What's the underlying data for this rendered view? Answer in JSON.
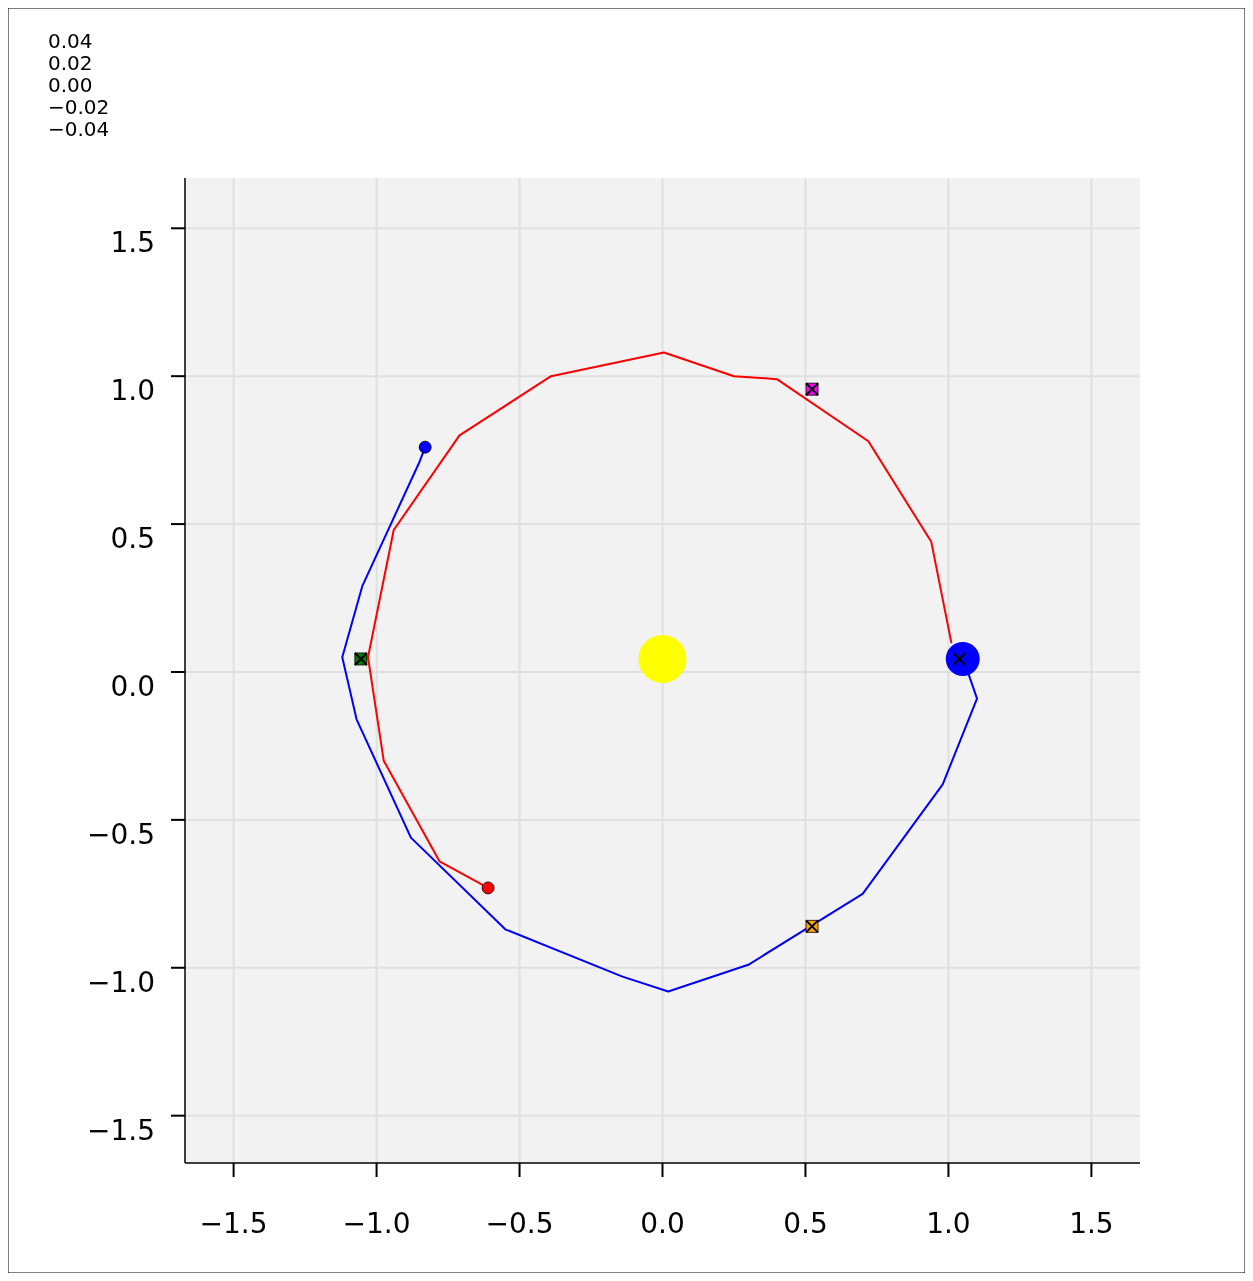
{
  "chart_data": {
    "type": "line",
    "xlim": [
      -1.67,
      1.67
    ],
    "ylim": [
      -1.66,
      1.67
    ],
    "xticks": [
      {
        "value": -1.5,
        "label": "−1.5"
      },
      {
        "value": -1.0,
        "label": "−1.0"
      },
      {
        "value": -0.5,
        "label": "−0.5"
      },
      {
        "value": 0,
        "label": "0.0"
      },
      {
        "value": 0.5,
        "label": "0.5"
      },
      {
        "value": 1.0,
        "label": "1.0"
      },
      {
        "value": 1.5,
        "label": "1.5"
      }
    ],
    "yticks": [
      {
        "value": -1.5,
        "label": "−1.5"
      },
      {
        "value": -1.0,
        "label": "−1.0"
      },
      {
        "value": -0.5,
        "label": "−0.5"
      },
      {
        "value": 0,
        "label": "0.0"
      },
      {
        "value": 0.5,
        "label": "0.5"
      },
      {
        "value": 1.0,
        "label": "1.0"
      },
      {
        "value": 1.5,
        "label": "1.5"
      }
    ],
    "grid": true,
    "annotations": [
      "0.04",
      "0.02",
      "0.00",
      "−0.02",
      "−0.04"
    ],
    "series": [
      {
        "color": "#ff0000",
        "x": [
          -0.61,
          -0.78,
          -0.975,
          -1.03,
          -0.94,
          -0.71,
          -0.39,
          0.005,
          0.25,
          0.4,
          0.72,
          0.94,
          1.01
        ],
        "values": [
          -0.73,
          -0.64,
          -0.3,
          0.05,
          0.48,
          0.8,
          1.0,
          1.08,
          1.0,
          0.99,
          0.78,
          0.44,
          0.1
        ]
      },
      {
        "type": "line",
        "color": "#0000ff",
        "x": [
          1.05,
          1.1,
          0.98,
          0.7,
          0.3,
          0.02,
          -0.14,
          -0.55,
          -0.88,
          -1.07,
          -1.12,
          -1.05,
          -0.85,
          -0.83
        ],
        "values": [
          0.05,
          -0.09,
          -0.38,
          -0.75,
          -0.99,
          -1.08,
          -1.03,
          -0.87,
          -0.56,
          -0.16,
          0.05,
          0.29,
          0.71,
          0.76
        ]
      },
      {
        "type": "bubble",
        "x": [
          0,
          1.05
        ],
        "values": [
          0.044,
          0.044
        ],
        "sizes": [
          1,
          0.5
        ],
        "colors": [
          "#ffff00",
          "#0000ff"
        ]
      },
      {
        "type": "scatter",
        "marker": "circle",
        "x": [
          -0.61,
          -0.83
        ],
        "values": [
          -0.73,
          0.76
        ],
        "colors": [
          "#ff0000",
          "#0000ff"
        ]
      },
      {
        "type": "scatter",
        "marker": "square",
        "x": [
          -1.055,
          0.523,
          0.523
        ],
        "values": [
          0.044,
          0.956,
          -0.86
        ],
        "colors": [
          "#008000",
          "#ff00ff",
          "#ffa500"
        ]
      },
      {
        "type": "scatter",
        "marker": "cross",
        "x": [
          -1.055,
          0.523,
          0.523,
          1.038
        ],
        "values": [
          0.044,
          0.956,
          -0.86,
          0.044
        ],
        "color": "#000000"
      }
    ]
  }
}
